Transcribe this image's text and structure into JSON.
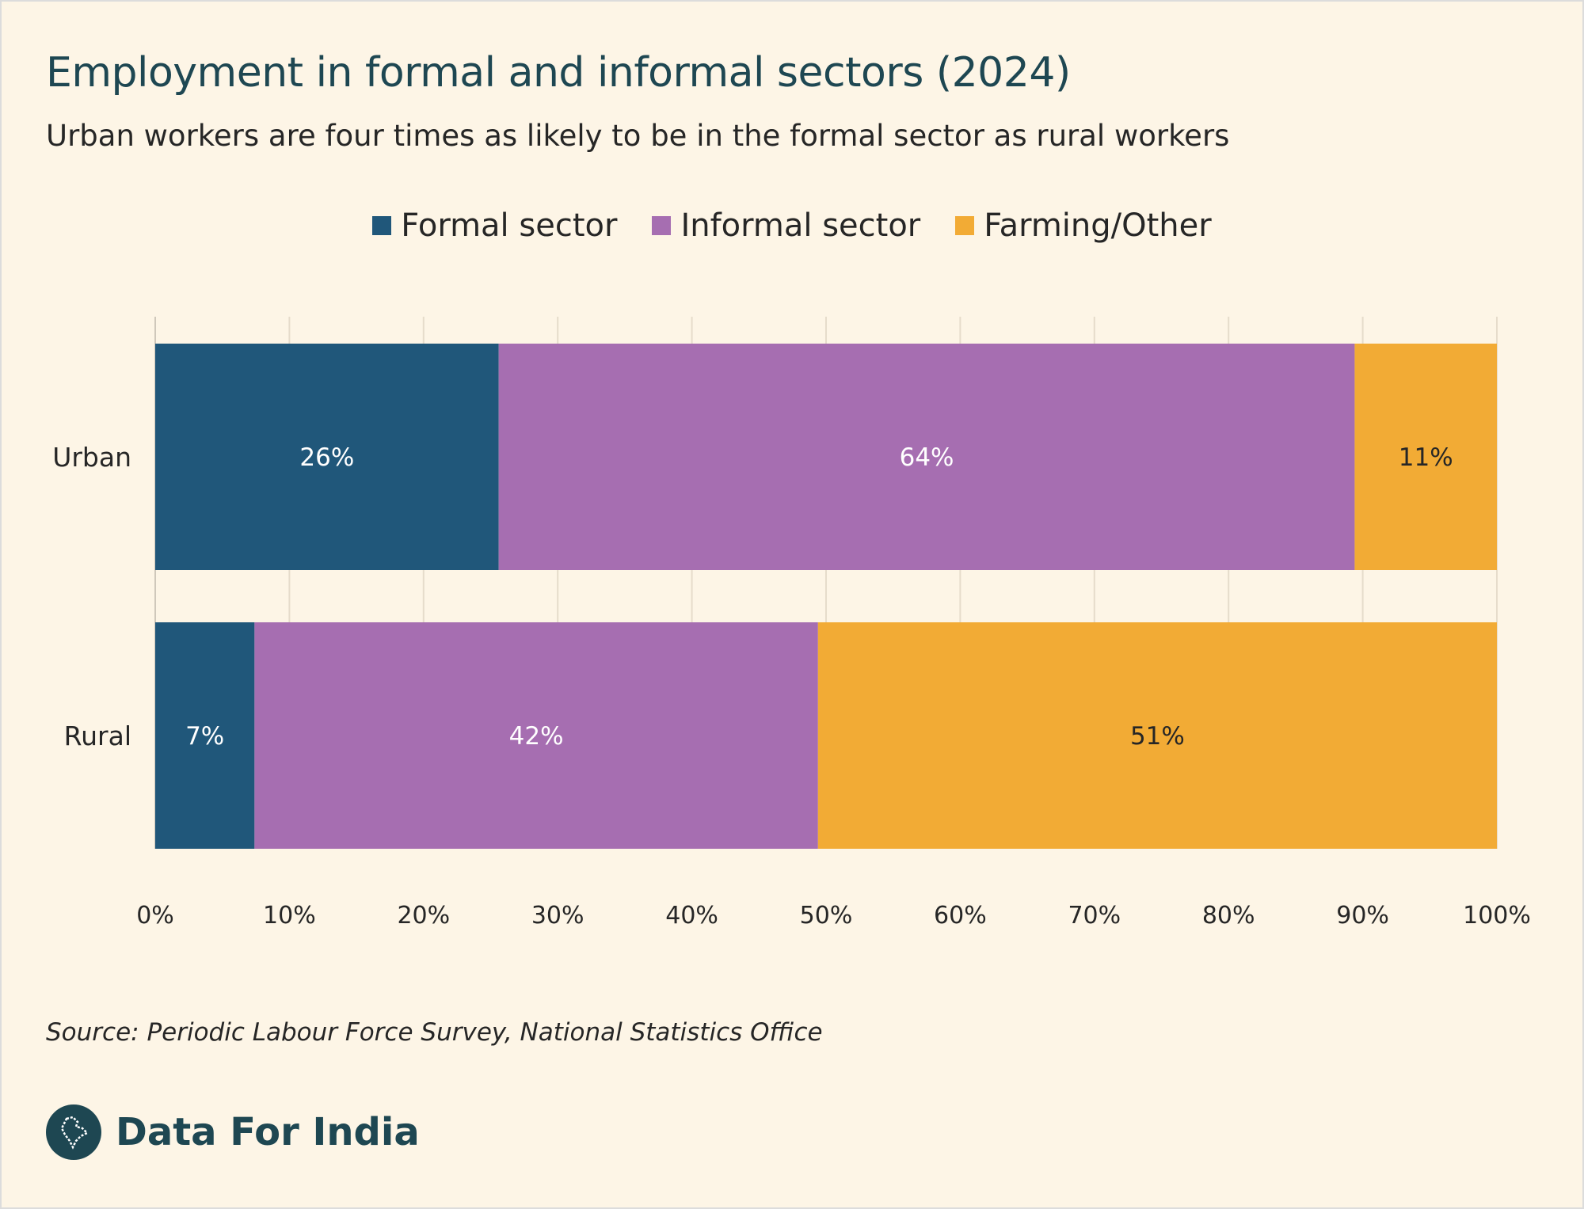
{
  "header": {
    "title": "Employment in formal and informal sectors (2024)",
    "subtitle": "Urban workers are four times as likely to be in the formal sector as rural workers"
  },
  "footer": {
    "source": "Source: Periodic Labour Force Survey, National Statistics Office",
    "brand": "Data For India"
  },
  "chart_data": {
    "type": "bar",
    "orientation": "horizontal",
    "stacked": true,
    "title": "Employment in formal and informal sectors (2024)",
    "subtitle": "Urban workers are four times as likely to be in the formal sector as rural workers",
    "categories": [
      "Urban",
      "Rural"
    ],
    "series": [
      {
        "name": "Formal sector",
        "values": [
          25.6,
          7.4
        ],
        "labels": [
          "26%",
          "7%"
        ],
        "color": "#20577a",
        "label_color": "#ffffff"
      },
      {
        "name": "Informal sector",
        "values": [
          63.8,
          42.0
        ],
        "labels": [
          "64%",
          "42%"
        ],
        "color": "#a66eb1",
        "label_color": "#ffffff"
      },
      {
        "name": "Farming/Other",
        "values": [
          10.6,
          50.6
        ],
        "labels": [
          "11%",
          "51%"
        ],
        "color": "#f2ab35",
        "label_color": "#262626"
      }
    ],
    "xlim": [
      0,
      100
    ],
    "xticks": [
      0,
      10,
      20,
      30,
      40,
      50,
      60,
      70,
      80,
      90,
      100
    ],
    "xtick_labels": [
      "0%",
      "10%",
      "20%",
      "30%",
      "40%",
      "50%",
      "60%",
      "70%",
      "80%",
      "90%",
      "100%"
    ],
    "xlabel": "",
    "ylabel": "",
    "grid": "vertical",
    "legend_position": "top-center",
    "source": "Source: Periodic Labour Force Survey, National Statistics Office"
  }
}
